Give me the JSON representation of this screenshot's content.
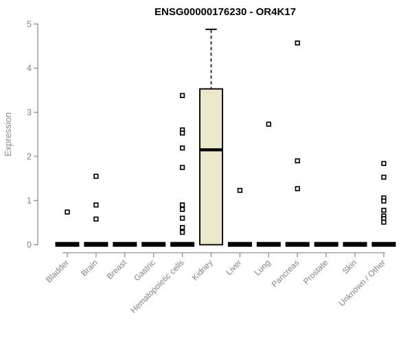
{
  "title": "ENSG00000176230 - OR4K17",
  "chart_data": {
    "type": "boxplot",
    "title": "ENSG00000176230 - OR4K17",
    "xlabel": "",
    "ylabel": "Expression",
    "ylim": [
      0,
      5
    ],
    "yticks": [
      0,
      1,
      2,
      3,
      4,
      5
    ],
    "grid": false,
    "legend": null,
    "categories": [
      "Bladder",
      "Brain",
      "Breast",
      "Gastric",
      "Hematopoietic cells",
      "Kidney",
      "Liver",
      "Lung",
      "Pancreas",
      "Prostate",
      "Skin",
      "Unknown / Other"
    ],
    "boxes": [
      {
        "category": "Bladder",
        "q1": 0,
        "median": 0,
        "q3": 0,
        "whisker_low": 0,
        "whisker_high": 0,
        "outliers": [
          0.74
        ]
      },
      {
        "category": "Brain",
        "q1": 0,
        "median": 0,
        "q3": 0,
        "whisker_low": 0,
        "whisker_high": 0,
        "outliers": [
          1.55,
          0.9,
          0.58
        ]
      },
      {
        "category": "Breast",
        "q1": 0,
        "median": 0,
        "q3": 0,
        "whisker_low": 0,
        "whisker_high": 0,
        "outliers": []
      },
      {
        "category": "Gastric",
        "q1": 0,
        "median": 0,
        "q3": 0,
        "whisker_low": 0,
        "whisker_high": 0,
        "outliers": []
      },
      {
        "category": "Hematopoietic cells",
        "q1": 0,
        "median": 0,
        "q3": 0,
        "whisker_low": 0,
        "whisker_high": 0,
        "outliers": [
          3.38,
          2.6,
          2.53,
          2.19,
          1.75,
          0.9,
          0.8,
          0.6,
          0.39,
          0.28
        ]
      },
      {
        "category": "Kidney",
        "q1": 0,
        "median": 2.15,
        "q3": 3.53,
        "whisker_low": 0,
        "whisker_high": 4.88,
        "outliers": []
      },
      {
        "category": "Liver",
        "q1": 0,
        "median": 0,
        "q3": 0,
        "whisker_low": 0,
        "whisker_high": 0,
        "outliers": [
          1.23
        ]
      },
      {
        "category": "Lung",
        "q1": 0,
        "median": 0,
        "q3": 0,
        "whisker_low": 0,
        "whisker_high": 0,
        "outliers": [
          2.73
        ]
      },
      {
        "category": "Pancreas",
        "q1": 0,
        "median": 0,
        "q3": 0,
        "whisker_low": 0,
        "whisker_high": 0,
        "outliers": [
          4.57,
          1.9,
          1.27
        ]
      },
      {
        "category": "Prostate",
        "q1": 0,
        "median": 0,
        "q3": 0,
        "whisker_low": 0,
        "whisker_high": 0,
        "outliers": []
      },
      {
        "category": "Skin",
        "q1": 0,
        "median": 0,
        "q3": 0,
        "whisker_low": 0,
        "whisker_high": 0,
        "outliers": []
      },
      {
        "category": "Unknown / Other",
        "q1": 0,
        "median": 0,
        "q3": 0,
        "whisker_low": 0,
        "whisker_high": 0,
        "outliers": [
          1.84,
          1.53,
          1.06,
          0.99,
          0.78,
          0.65,
          0.59,
          0.51
        ]
      }
    ],
    "colors": {
      "background": "#ffffff",
      "box_fill": "#ece6cb",
      "box_border": "#000000",
      "median": "#000000",
      "whisker": "#000000",
      "outlier": "#000000",
      "axis_line": "#8f8f8f",
      "tick_label": "#828282",
      "title": "#000000"
    }
  }
}
